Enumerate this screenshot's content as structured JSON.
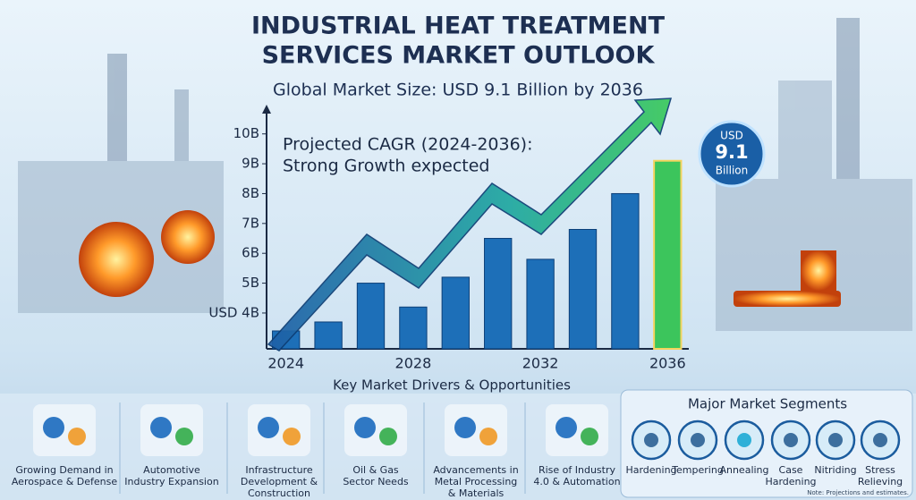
{
  "chart_data": {
    "type": "bar",
    "title": [
      "INDUSTRIAL HEAT TREATMENT",
      "SERVICES MARKET OUTLOOK"
    ],
    "subtitle": "Global Market Size: USD 9.1 Billion by 2036",
    "annotation": [
      "Projected CAGR (2024-2036):",
      "Strong Growth expected"
    ],
    "badge": [
      "USD",
      "9.1",
      "Billion"
    ],
    "categories": [
      "2024",
      null,
      null,
      "2028",
      null,
      null,
      "2032",
      null,
      null,
      "2036"
    ],
    "values": [
      3.4,
      3.7,
      5.0,
      4.2,
      5.2,
      6.5,
      5.8,
      6.8,
      8.0,
      9.1
    ],
    "colors": [
      "#1d6fb8",
      "#1d6fb8",
      "#1d6fb8",
      "#1d6fb8",
      "#1d6fb8",
      "#1d6fb8",
      "#1d6fb8",
      "#1d6fb8",
      "#1d6fb8",
      "#3cc55c"
    ],
    "ylim": [
      2.8,
      10.8
    ],
    "yticks": [
      {
        "value": 4,
        "label": "USD 4B"
      },
      {
        "value": 5,
        "label": "5B"
      },
      {
        "value": 6,
        "label": "6B"
      },
      {
        "value": 7,
        "label": "7B"
      },
      {
        "value": 8,
        "label": "8B"
      },
      {
        "value": 9,
        "label": "9B"
      },
      {
        "value": 10,
        "label": "10B"
      }
    ],
    "grid": false
  },
  "drivers_heading": "Key Market Drivers & Opportunities",
  "drivers": [
    {
      "label": [
        "Growing Demand in",
        "Aerospace & Defense"
      ]
    },
    {
      "label": [
        "Automotive",
        "Industry Expansion"
      ]
    },
    {
      "label": [
        "Infrastructure",
        "Development &",
        "Construction"
      ]
    },
    {
      "label": [
        "Oil & Gas",
        "Sector Needs"
      ]
    },
    {
      "label": [
        "Advancements in",
        "Metal Processing",
        "& Materials"
      ]
    },
    {
      "label": [
        "Rise of Industry",
        "4.0 & Automation"
      ]
    }
  ],
  "segments_heading": "Major Market Segments",
  "segments": [
    {
      "label": [
        "Hardening"
      ]
    },
    {
      "label": [
        "Tempering"
      ]
    },
    {
      "label": [
        "Annealing"
      ]
    },
    {
      "label": [
        "Case",
        "Hardening"
      ]
    },
    {
      "label": [
        "Nitriding"
      ]
    },
    {
      "label": [
        "Stress",
        "Relieving"
      ]
    }
  ],
  "note": "Note: Projections and estimates."
}
